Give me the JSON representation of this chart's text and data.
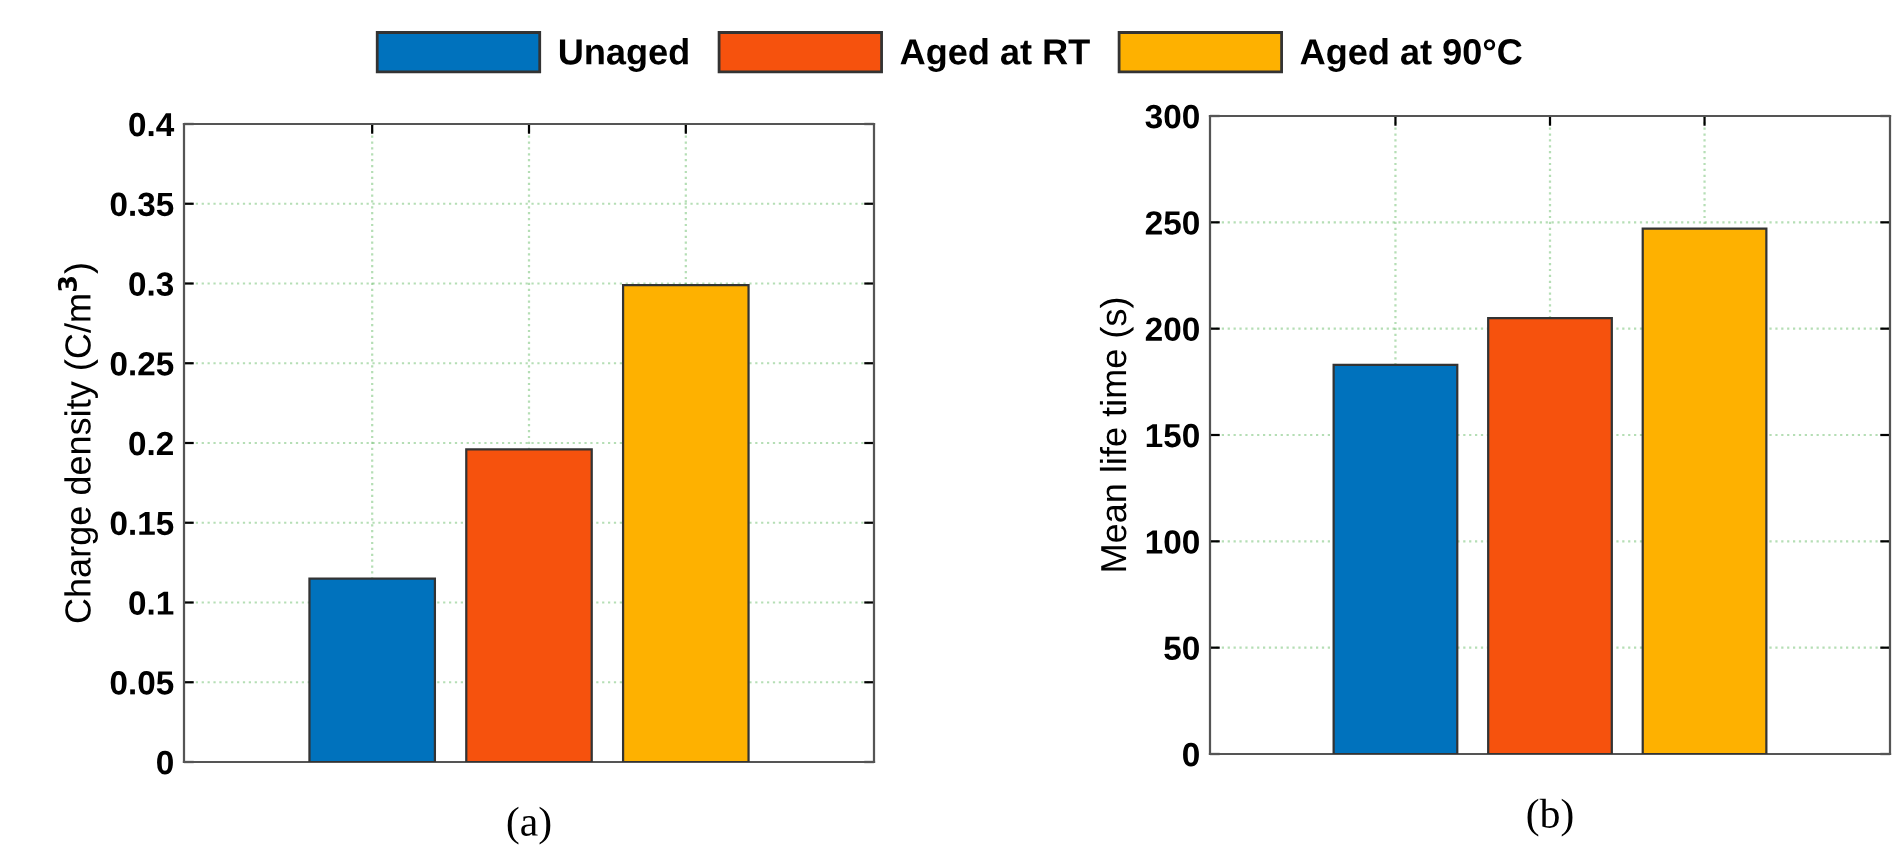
{
  "chart_data": [
    {
      "type": "bar",
      "categories": [
        null,
        null,
        null
      ],
      "ylabel": "Charge density (C/m$^{3}$)",
      "ylim": [
        0,
        0.4
      ],
      "yticks": [
        0,
        0.05,
        0.1,
        0.15,
        0.2,
        0.25,
        0.3,
        0.35,
        0.4
      ],
      "grid": true,
      "legend": "top",
      "annotations": [
        "(a)"
      ],
      "series": [
        {
          "name": "Unaged",
          "color": "#0072bd",
          "values": [
            0.115,
            null,
            null
          ]
        },
        {
          "name": "Aged at RT",
          "color": "#f6520d",
          "values": [
            null,
            0.196,
            null
          ]
        },
        {
          "name": "Aged at 90°C",
          "color": "#feb100",
          "values": [
            null,
            null,
            0.299
          ]
        }
      ]
    },
    {
      "type": "bar",
      "categories": [
        null,
        null,
        null
      ],
      "ylabel": "Mean life time (s)",
      "ylim": [
        0,
        300
      ],
      "yticks": [
        0,
        50,
        100,
        150,
        200,
        250,
        300
      ],
      "grid": true,
      "annotations": [
        "(b)"
      ],
      "series": [
        {
          "color": "#0072bd",
          "values": [
            183,
            null,
            null
          ]
        },
        {
          "color": "#f6520d",
          "values": [
            null,
            205,
            null
          ]
        },
        {
          "color": "#feb100",
          "values": [
            null,
            null,
            247
          ]
        }
      ]
    }
  ]
}
